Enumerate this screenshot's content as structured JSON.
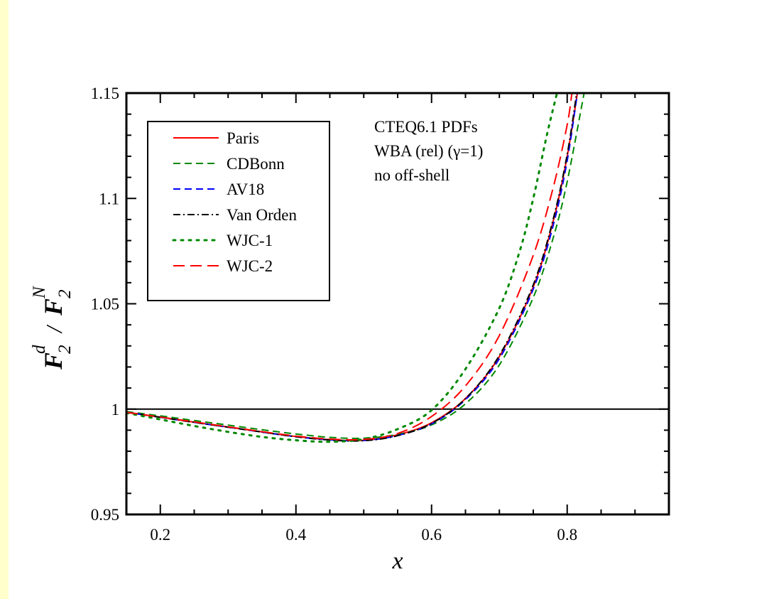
{
  "chart_data": {
    "type": "line",
    "xlabel": "x",
    "ylabel": {
      "main1": "F",
      "sub1": "2",
      "sup1": "d",
      "slash": "/",
      "main2": "F",
      "sub2": "2",
      "sup2": "N"
    },
    "xlim": [
      0.15,
      0.95
    ],
    "ylim": [
      0.95,
      1.15
    ],
    "x_ticks": [
      0.2,
      0.4,
      0.6,
      0.8
    ],
    "x_tick_labels": [
      "0.2",
      "0.4",
      "0.6",
      "0.8"
    ],
    "y_ticks": [
      0.95,
      1.0,
      1.05,
      1.1,
      1.15
    ],
    "y_tick_labels": [
      "0.95",
      "1",
      "1.05",
      "1.1",
      "1.15"
    ],
    "reference_line": 1.0,
    "legend_position": "top-left",
    "annotations": [
      "CTEQ6.1 PDFs",
      "WBA (rel) (γ=1)",
      "no off-shell"
    ],
    "series": [
      {
        "name": "Paris",
        "color": "#ff0000",
        "dash": "solid",
        "width": 2,
        "points": [
          [
            0.15,
            0.9985
          ],
          [
            0.2,
            0.9962
          ],
          [
            0.25,
            0.9938
          ],
          [
            0.3,
            0.9915
          ],
          [
            0.35,
            0.9892
          ],
          [
            0.4,
            0.987
          ],
          [
            0.45,
            0.9855
          ],
          [
            0.5,
            0.9852
          ],
          [
            0.55,
            0.9878
          ],
          [
            0.6,
            0.9935
          ],
          [
            0.65,
            1.005
          ],
          [
            0.7,
            1.025
          ],
          [
            0.75,
            1.058
          ],
          [
            0.78,
            1.09
          ],
          [
            0.8,
            1.12
          ],
          [
            0.815,
            1.15
          ]
        ]
      },
      {
        "name": "CDBonn",
        "color": "#008800",
        "dash": "10,6",
        "width": 2,
        "points": [
          [
            0.15,
            0.9988
          ],
          [
            0.2,
            0.9968
          ],
          [
            0.25,
            0.9946
          ],
          [
            0.3,
            0.9924
          ],
          [
            0.35,
            0.9902
          ],
          [
            0.4,
            0.9882
          ],
          [
            0.45,
            0.9866
          ],
          [
            0.5,
            0.9862
          ],
          [
            0.55,
            0.988
          ],
          [
            0.6,
            0.9925
          ],
          [
            0.65,
            1.0025
          ],
          [
            0.7,
            1.021
          ],
          [
            0.75,
            1.053
          ],
          [
            0.78,
            1.082
          ],
          [
            0.8,
            1.108
          ],
          [
            0.825,
            1.15
          ]
        ]
      },
      {
        "name": "AV18",
        "color": "#0000ff",
        "dash": "10,6",
        "width": 2,
        "points": [
          [
            0.15,
            0.9985
          ],
          [
            0.2,
            0.9961
          ],
          [
            0.25,
            0.9937
          ],
          [
            0.3,
            0.9914
          ],
          [
            0.35,
            0.9891
          ],
          [
            0.4,
            0.9869
          ],
          [
            0.45,
            0.9854
          ],
          [
            0.5,
            0.9851
          ],
          [
            0.55,
            0.9875
          ],
          [
            0.6,
            0.993
          ],
          [
            0.65,
            1.0045
          ],
          [
            0.7,
            1.024
          ],
          [
            0.75,
            1.057
          ],
          [
            0.78,
            1.088
          ],
          [
            0.8,
            1.118
          ],
          [
            0.815,
            1.15
          ]
        ]
      },
      {
        "name": "Van Orden",
        "color": "#000000",
        "dash": "10,4,2,4",
        "width": 2,
        "points": [
          [
            0.15,
            0.9985
          ],
          [
            0.2,
            0.9961
          ],
          [
            0.25,
            0.9937
          ],
          [
            0.3,
            0.9914
          ],
          [
            0.35,
            0.9891
          ],
          [
            0.4,
            0.9869
          ],
          [
            0.45,
            0.9853
          ],
          [
            0.5,
            0.985
          ],
          [
            0.55,
            0.9874
          ],
          [
            0.6,
            0.9932
          ],
          [
            0.65,
            1.005
          ],
          [
            0.7,
            1.0255
          ],
          [
            0.75,
            1.059
          ],
          [
            0.78,
            1.091
          ],
          [
            0.8,
            1.121
          ],
          [
            0.814,
            1.15
          ]
        ]
      },
      {
        "name": "WJC-1",
        "color": "#008800",
        "dash": "3,8",
        "width": 3,
        "points": [
          [
            0.15,
            0.9982
          ],
          [
            0.2,
            0.9951
          ],
          [
            0.25,
            0.992
          ],
          [
            0.3,
            0.9892
          ],
          [
            0.35,
            0.9868
          ],
          [
            0.4,
            0.9852
          ],
          [
            0.45,
            0.9845
          ],
          [
            0.5,
            0.9858
          ],
          [
            0.55,
            0.9905
          ],
          [
            0.6,
            0.9995
          ],
          [
            0.65,
            1.019
          ],
          [
            0.7,
            1.048
          ],
          [
            0.73,
            1.075
          ],
          [
            0.75,
            1.1
          ],
          [
            0.77,
            1.13
          ],
          [
            0.785,
            1.15
          ]
        ]
      },
      {
        "name": "WJC-2",
        "color": "#ff0000",
        "dash": "16,8",
        "width": 2,
        "points": [
          [
            0.15,
            0.9985
          ],
          [
            0.2,
            0.9962
          ],
          [
            0.25,
            0.9939
          ],
          [
            0.3,
            0.9916
          ],
          [
            0.35,
            0.9893
          ],
          [
            0.4,
            0.9872
          ],
          [
            0.45,
            0.9858
          ],
          [
            0.5,
            0.9856
          ],
          [
            0.55,
            0.9884
          ],
          [
            0.6,
            0.9965
          ],
          [
            0.65,
            1.011
          ],
          [
            0.7,
            1.035
          ],
          [
            0.75,
            1.073
          ],
          [
            0.78,
            1.106
          ],
          [
            0.8,
            1.135
          ],
          [
            0.807,
            1.15
          ]
        ]
      }
    ]
  }
}
